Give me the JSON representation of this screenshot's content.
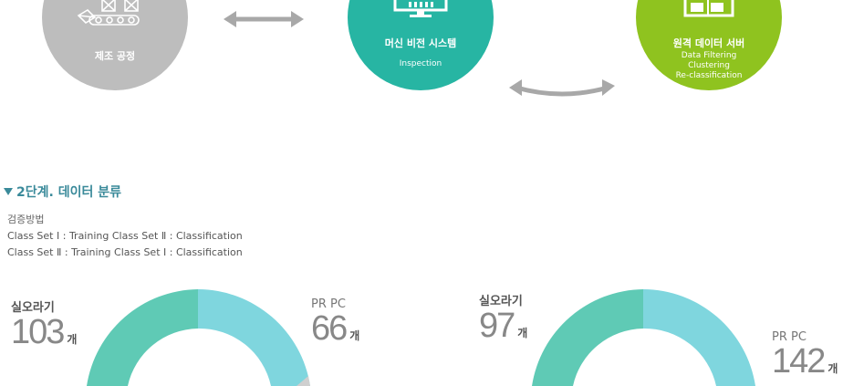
{
  "process": {
    "manufacturing": {
      "title": "제조 공정",
      "icon": "factory-conveyor-icon"
    },
    "vision": {
      "title": "머신 비전 시스템",
      "sub": "Inspection",
      "icon": "monitor-icon"
    },
    "server": {
      "title": "원격 데이터 서버",
      "sub1": "Data Filtering",
      "sub2": "Clustering",
      "sub3": "Re-classification",
      "icon": "server-icon"
    }
  },
  "section": {
    "title": "2단계. 데이터 분류",
    "method_label": "검증방법",
    "line1": "Class Set Ⅰ : Training Class Set Ⅱ : Classification",
    "line2": "Class Set Ⅱ : Training Class Set Ⅰ : Classification"
  },
  "results": {
    "left": {
      "a_label": "실오라기",
      "a_value": "103",
      "a_unit": "개",
      "b_label": "PR PC",
      "b_value": "66",
      "b_unit": "개"
    },
    "right": {
      "a_label": "실오라기",
      "a_value": "97",
      "a_unit": "개",
      "b_label": "PR PC",
      "b_value": "142",
      "b_unit": "개"
    }
  },
  "colors": {
    "gray": "#bdbdbd",
    "teal": "#27b5a3",
    "green": "#8fc31f",
    "gauge_a": "#5fcab5",
    "gauge_b": "#7fd6de"
  }
}
